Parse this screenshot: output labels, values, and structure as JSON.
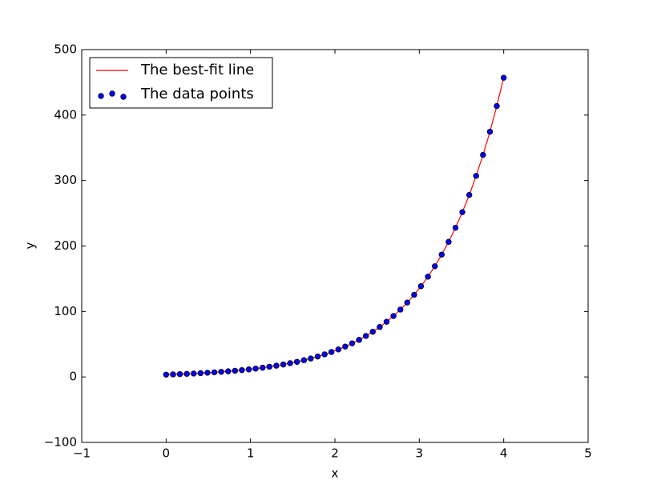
{
  "chart_data": {
    "type": "line",
    "x_label": "x",
    "y_label": "y",
    "xlim": [
      -1,
      5
    ],
    "ylim": [
      -100,
      500
    ],
    "xticks": [
      {
        "value": -1,
        "label": "−1"
      },
      0,
      1,
      2,
      3,
      4,
      5
    ],
    "yticks": [
      {
        "value": -100,
        "label": "−100"
      },
      0,
      100,
      200,
      300,
      400,
      500
    ],
    "legend": "upper left",
    "series": [
      {
        "name": "The best-fit line",
        "type": "line",
        "color": "#ff0000",
        "x": [
          0,
          0.082,
          0.163,
          0.245,
          0.327,
          0.408,
          0.49,
          0.571,
          0.653,
          0.735,
          0.816,
          0.898,
          0.98,
          1.061,
          1.143,
          1.224,
          1.306,
          1.388,
          1.469,
          1.551,
          1.633,
          1.714,
          1.796,
          1.878,
          1.959,
          2.041,
          2.122,
          2.204,
          2.286,
          2.367,
          2.449,
          2.531,
          2.612,
          2.694,
          2.776,
          2.857,
          2.939,
          3.02,
          3.102,
          3.184,
          3.265,
          3.347,
          3.429,
          3.51,
          3.592,
          3.673,
          3.755,
          3.837,
          3.918,
          4
        ],
        "values": [
          3.5,
          3.9,
          4.3,
          4.7,
          5.2,
          5.8,
          6.4,
          7.0,
          7.8,
          8.6,
          9.5,
          10.4,
          11.5,
          12.7,
          14.1,
          15.6,
          17.2,
          19.0,
          21.0,
          23.1,
          25.6,
          28.2,
          31.2,
          34.5,
          38.1,
          42.0,
          46.4,
          51.3,
          56.6,
          62.6,
          69.1,
          76.3,
          84.3,
          93.1,
          102.9,
          113.6,
          125.5,
          138.6,
          153.1,
          169.1,
          186.8,
          206.3,
          227.9,
          251.7,
          278.0,
          307.1,
          339.2,
          374.6,
          413.8,
          457.0
        ]
      },
      {
        "name": "The data points",
        "type": "scatter",
        "color": "#0000ff",
        "edgecolor": "#000000",
        "x": [
          0,
          0.082,
          0.163,
          0.245,
          0.327,
          0.408,
          0.49,
          0.571,
          0.653,
          0.735,
          0.816,
          0.898,
          0.98,
          1.061,
          1.143,
          1.224,
          1.306,
          1.388,
          1.469,
          1.551,
          1.633,
          1.714,
          1.796,
          1.878,
          1.959,
          2.041,
          2.122,
          2.204,
          2.286,
          2.367,
          2.449,
          2.531,
          2.612,
          2.694,
          2.776,
          2.857,
          2.939,
          3.02,
          3.102,
          3.184,
          3.265,
          3.347,
          3.429,
          3.51,
          3.592,
          3.673,
          3.755,
          3.837,
          3.918,
          4
        ],
        "values": [
          3.5,
          3.9,
          4.3,
          4.7,
          5.2,
          5.8,
          6.4,
          7.0,
          7.8,
          8.6,
          9.5,
          10.4,
          11.5,
          12.7,
          14.1,
          15.6,
          17.2,
          19.0,
          21.0,
          23.1,
          25.6,
          28.2,
          31.2,
          34.5,
          38.1,
          42.0,
          46.4,
          51.3,
          56.6,
          62.6,
          69.1,
          76.3,
          84.3,
          93.1,
          102.9,
          113.6,
          125.5,
          138.6,
          153.1,
          169.1,
          186.8,
          206.3,
          227.9,
          251.7,
          278.0,
          307.1,
          339.2,
          374.6,
          413.8,
          457.0
        ]
      }
    ]
  }
}
